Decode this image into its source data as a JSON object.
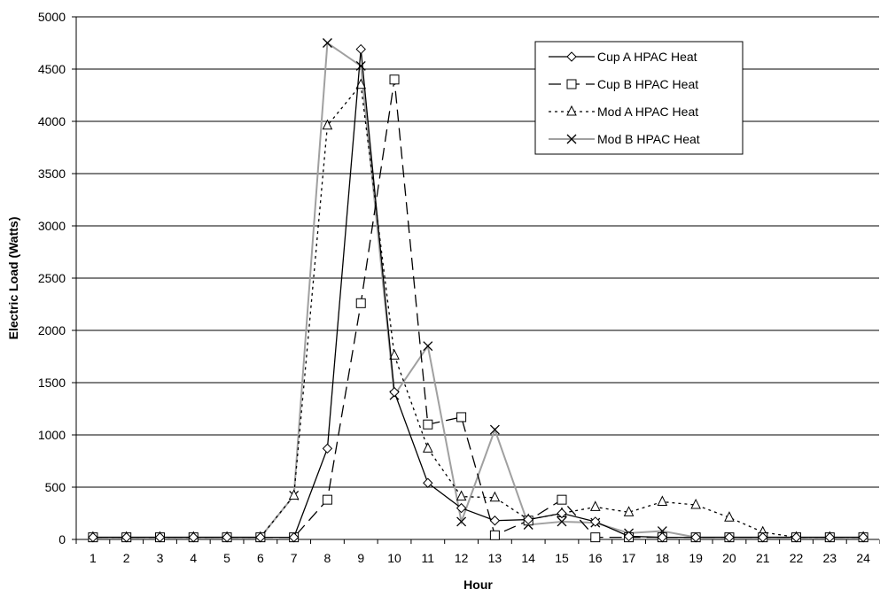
{
  "chart_data": {
    "type": "line",
    "title": "",
    "xlabel": "Hour",
    "ylabel": "Electric Load (Watts)",
    "x": [
      1,
      2,
      3,
      4,
      5,
      6,
      7,
      8,
      9,
      10,
      11,
      12,
      13,
      14,
      15,
      16,
      17,
      18,
      19,
      20,
      21,
      22,
      23,
      24
    ],
    "ylim": [
      0,
      5000
    ],
    "yticks": [
      0,
      500,
      1000,
      1500,
      2000,
      2500,
      3000,
      3500,
      4000,
      4500,
      5000
    ],
    "grid": true,
    "legend_position": "top-right",
    "series": [
      {
        "name": "Cup A HPAC Heat",
        "color": "#000000",
        "dash": "solid",
        "marker": "diamond",
        "values": [
          20,
          20,
          20,
          20,
          20,
          20,
          20,
          870,
          4690,
          1410,
          540,
          300,
          180,
          190,
          250,
          170,
          30,
          20,
          20,
          20,
          20,
          20,
          20,
          20
        ]
      },
      {
        "name": "Cup B HPAC Heat",
        "color": "#000000",
        "dash": "long-dash",
        "marker": "square",
        "values": [
          20,
          20,
          20,
          20,
          20,
          20,
          20,
          380,
          2260,
          4400,
          1100,
          1170,
          40,
          180,
          380,
          20,
          20,
          20,
          20,
          20,
          20,
          20,
          20,
          20
        ]
      },
      {
        "name": "Mod A HPAC Heat",
        "color": "#000000",
        "dash": "dotted",
        "marker": "triangle",
        "values": [
          20,
          20,
          20,
          20,
          20,
          20,
          420,
          3960,
          4350,
          1760,
          870,
          410,
          400,
          190,
          250,
          310,
          260,
          360,
          330,
          210,
          70,
          20,
          20,
          20
        ]
      },
      {
        "name": "Mod B HPAC Heat",
        "color": "#a0a0a0",
        "marker_color": "#000000",
        "dash": "solid",
        "marker": "x",
        "values": [
          20,
          20,
          20,
          20,
          20,
          20,
          420,
          4750,
          4530,
          1380,
          1850,
          170,
          1050,
          140,
          170,
          160,
          60,
          80,
          20,
          20,
          20,
          20,
          20,
          20
        ]
      }
    ]
  }
}
